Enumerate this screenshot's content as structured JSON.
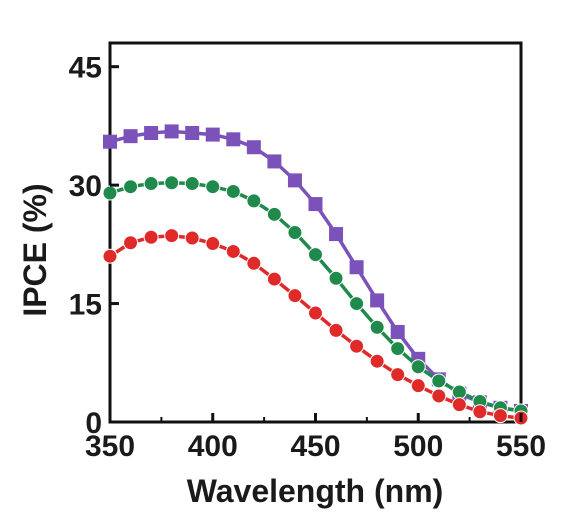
{
  "chart_data": {
    "type": "line",
    "title": "",
    "xlabel": "Wavelength (nm)",
    "ylabel": "IPCE (%)",
    "xlim": [
      350,
      550
    ],
    "ylim": [
      0,
      48
    ],
    "x_ticks": [
      "350",
      "400",
      "450",
      "500",
      "550"
    ],
    "y_ticks": [
      "0",
      "15",
      "30",
      "45"
    ],
    "grid": false,
    "legend": "none",
    "series": [
      {
        "color": "#7b52b9",
        "marker": "square",
        "x": [
          350,
          360,
          370,
          380,
          390,
          400,
          410,
          420,
          430,
          440,
          450,
          460,
          470,
          480,
          490,
          500,
          510,
          520,
          530,
          540,
          550
        ],
        "y": [
          35.5,
          36.2,
          36.6,
          36.8,
          36.6,
          36.4,
          35.8,
          34.8,
          33.0,
          30.6,
          27.6,
          23.8,
          19.6,
          15.4,
          11.4,
          8.0,
          5.4,
          3.6,
          2.5,
          1.8,
          1.4
        ]
      },
      {
        "color": "#1f8a4c",
        "marker": "circle",
        "x": [
          350,
          360,
          370,
          380,
          390,
          400,
          410,
          420,
          430,
          440,
          450,
          460,
          470,
          480,
          490,
          500,
          510,
          520,
          530,
          540,
          550
        ],
        "y": [
          29.0,
          29.8,
          30.2,
          30.3,
          30.2,
          29.8,
          29.2,
          28.0,
          26.3,
          24.0,
          21.2,
          18.2,
          15.0,
          12.0,
          9.3,
          7.0,
          5.2,
          3.8,
          2.6,
          1.8,
          1.4
        ]
      },
      {
        "color": "#e02a2a",
        "marker": "circle",
        "x": [
          350,
          360,
          370,
          380,
          390,
          400,
          410,
          420,
          430,
          440,
          450,
          460,
          470,
          480,
          490,
          500,
          510,
          520,
          530,
          540,
          550
        ],
        "y": [
          21.0,
          22.7,
          23.4,
          23.6,
          23.3,
          22.6,
          21.6,
          20.1,
          18.1,
          16.0,
          13.8,
          11.6,
          9.6,
          7.7,
          6.0,
          4.6,
          3.3,
          2.2,
          1.3,
          0.8,
          0.5
        ]
      }
    ]
  }
}
